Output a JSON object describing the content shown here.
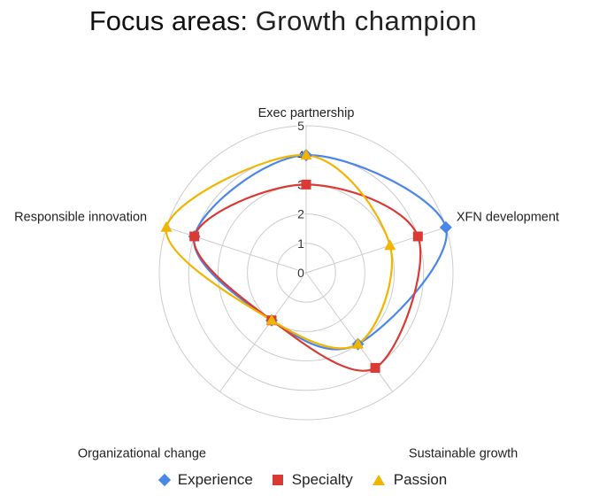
{
  "title": {
    "bold": "Focus areas:",
    "light": "Growth champion"
  },
  "colors": {
    "grid": "#cccccc",
    "Experience": "#4a86e8",
    "Specialty": "#db3a34",
    "Passion": "#f1b400"
  },
  "chart_data": {
    "type": "radar",
    "categories": [
      "Exec partnership",
      "XFN development",
      "Sustainable growth",
      "Organizational change",
      "Responsible innovation"
    ],
    "rlim": [
      0,
      5
    ],
    "rticks": [
      "0",
      "1",
      "2",
      "3",
      "4",
      "5"
    ],
    "grid": true,
    "legend": "bottom",
    "series": [
      {
        "name": "Experience",
        "marker": "diamond",
        "values": [
          4,
          5,
          3,
          2,
          4
        ]
      },
      {
        "name": "Specialty",
        "marker": "square",
        "values": [
          3,
          4,
          4,
          2,
          4
        ]
      },
      {
        "name": "Passion",
        "marker": "triangle",
        "values": [
          4,
          3,
          3,
          2,
          5
        ]
      }
    ]
  }
}
